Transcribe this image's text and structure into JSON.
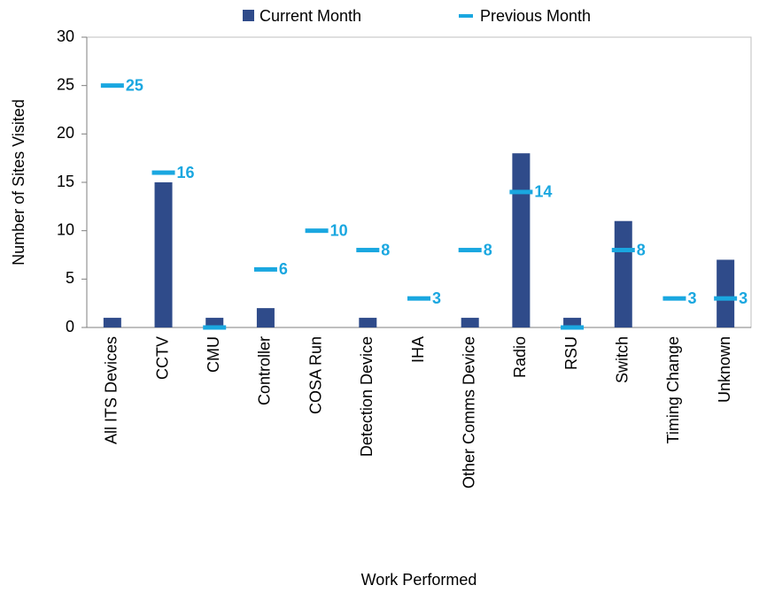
{
  "chart_data": {
    "type": "bar",
    "x_label": "Work Performed",
    "y_label": "Number  of Sites Visited",
    "categories": [
      "All ITS Devices",
      "CCTV",
      "CMU",
      "Controller",
      "COSA Run",
      "Detection Device",
      "IHA",
      "Other Comms Device",
      "Radio",
      "RSU",
      "Switch",
      "Timing Change",
      "Unknown"
    ],
    "series": [
      {
        "name": "Current Month",
        "color": "#2f4b8a",
        "values": [
          1,
          15,
          1,
          2,
          0,
          1,
          0,
          1,
          18,
          1,
          11,
          0,
          7
        ]
      },
      {
        "name": "Previous Month",
        "color": "#1aa7e0",
        "values": [
          25,
          16,
          0,
          6,
          10,
          8,
          3,
          8,
          14,
          0,
          8,
          3,
          3
        ]
      }
    ],
    "ylim": [
      0,
      30
    ],
    "yticks": [
      0,
      5,
      10,
      15,
      20,
      25,
      30
    ],
    "grid": false,
    "legend": "top"
  }
}
